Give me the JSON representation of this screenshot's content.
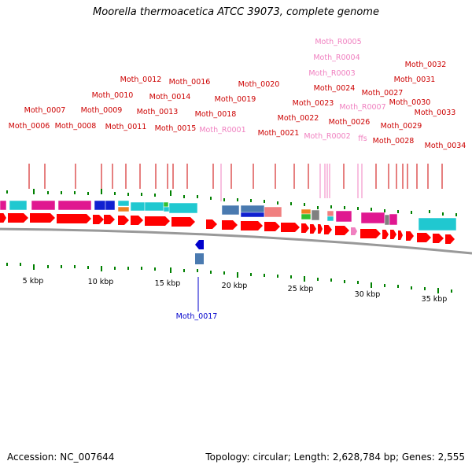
{
  "title": "Moorella thermoacetica ATCC 39073, complete genome",
  "footer": {
    "accession": "Accession: NC_007644",
    "topology": "Topology: circular; Length: 2,628,784 bp; Genes: 2,555"
  },
  "colors": {
    "gene_label": "#cc0000",
    "rna_label": "#f080c0",
    "reverse_label": "#0000cc",
    "cds_arrow": "#ff0000",
    "tick": "#008000",
    "backbone": "#999999",
    "cog_magenta": "#e01890",
    "cog_blue": "#1020d0",
    "cog_cyan": "#20c8d0",
    "cog_steel": "#4a7ab0",
    "cog_salmon": "#f08080",
    "cog_orange": "#f08020",
    "cog_green": "#30c030",
    "cog_grey": "#808080"
  },
  "scale_labels": [
    "5 kbp",
    "10 kbp",
    "15 kbp",
    "20 kbp",
    "25 kbp",
    "30 kbp",
    "35 kbp"
  ],
  "gene_labels": [
    {
      "text": "Moth_0006",
      "kind": "gene"
    },
    {
      "text": "Moth_0007",
      "kind": "gene"
    },
    {
      "text": "Moth_0008",
      "kind": "gene"
    },
    {
      "text": "Moth_0009",
      "kind": "gene"
    },
    {
      "text": "Moth_0010",
      "kind": "gene"
    },
    {
      "text": "Moth_0011",
      "kind": "gene"
    },
    {
      "text": "Moth_0012",
      "kind": "gene"
    },
    {
      "text": "Moth_0013",
      "kind": "gene"
    },
    {
      "text": "Moth_0014",
      "kind": "gene"
    },
    {
      "text": "Moth_0015",
      "kind": "gene"
    },
    {
      "text": "Moth_0016",
      "kind": "gene"
    },
    {
      "text": "Moth_0018",
      "kind": "gene"
    },
    {
      "text": "Moth_R0001",
      "kind": "rna"
    },
    {
      "text": "Moth_0019",
      "kind": "gene"
    },
    {
      "text": "Moth_0020",
      "kind": "gene"
    },
    {
      "text": "Moth_0021",
      "kind": "gene"
    },
    {
      "text": "Moth_0022",
      "kind": "gene"
    },
    {
      "text": "Moth_0023",
      "kind": "gene"
    },
    {
      "text": "Moth_R0002",
      "kind": "rna"
    },
    {
      "text": "Moth_0024",
      "kind": "gene"
    },
    {
      "text": "Moth_R0003",
      "kind": "rna"
    },
    {
      "text": "Moth_R0004",
      "kind": "rna"
    },
    {
      "text": "Moth_R0005",
      "kind": "rna"
    },
    {
      "text": "Moth_0026",
      "kind": "gene"
    },
    {
      "text": "Moth_R0007",
      "kind": "rna"
    },
    {
      "text": "ffs",
      "kind": "rna"
    },
    {
      "text": "Moth_0027",
      "kind": "gene"
    },
    {
      "text": "Moth_0028",
      "kind": "gene"
    },
    {
      "text": "Moth_0029",
      "kind": "gene"
    },
    {
      "text": "Moth_0030",
      "kind": "gene"
    },
    {
      "text": "Moth_0031",
      "kind": "gene"
    },
    {
      "text": "Moth_0032",
      "kind": "gene"
    },
    {
      "text": "Moth_0033",
      "kind": "gene"
    },
    {
      "text": "Moth_0034",
      "kind": "gene"
    },
    {
      "text": "Moth_0017",
      "kind": "reverse"
    }
  ]
}
